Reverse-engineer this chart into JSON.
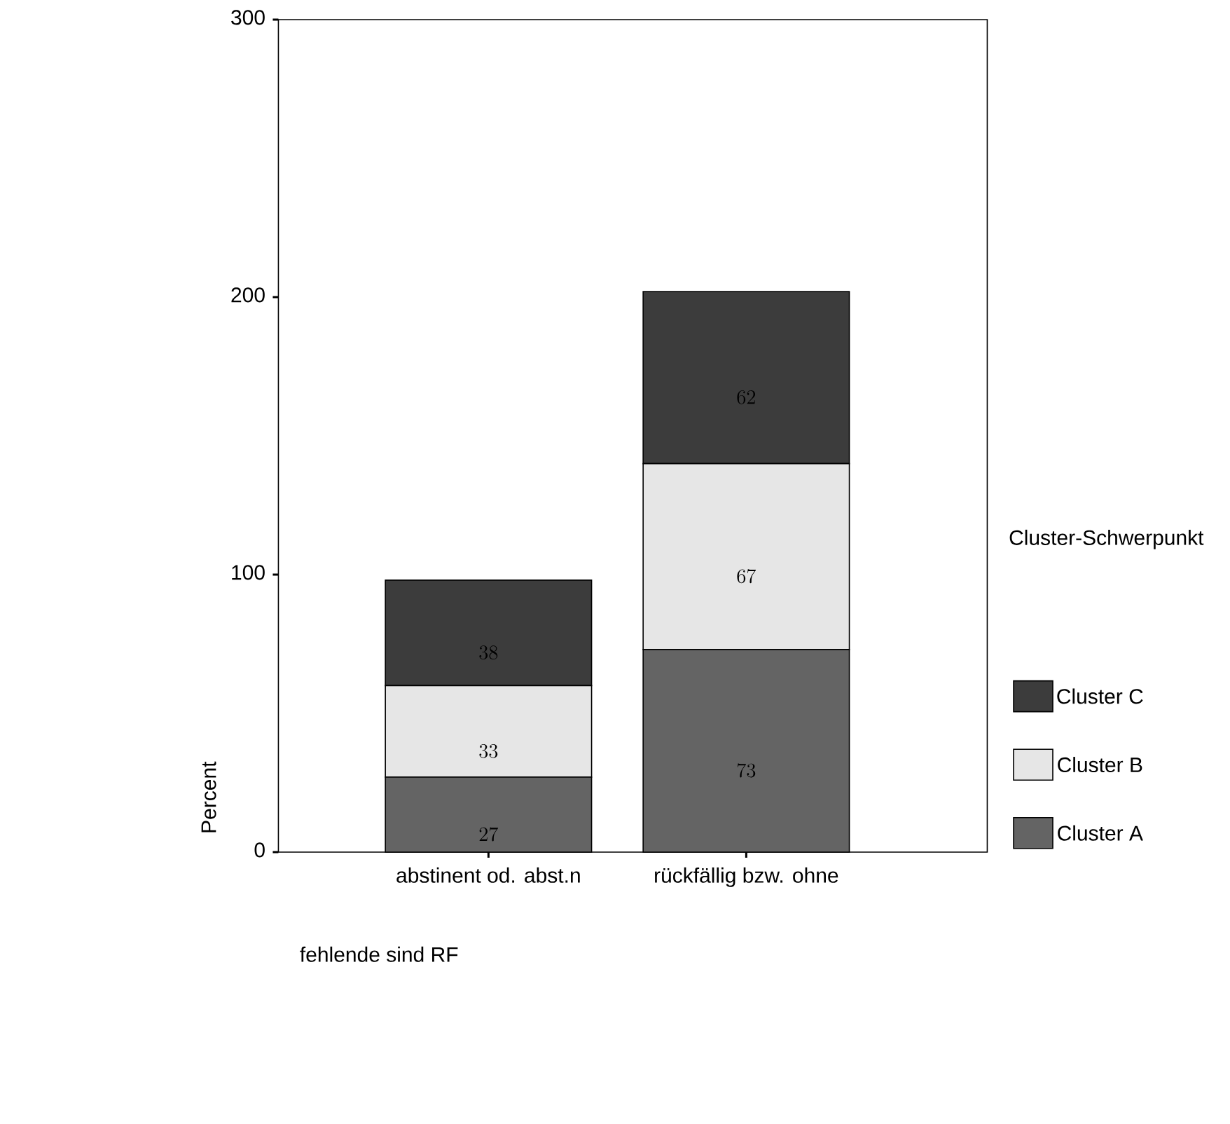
{
  "chart_data": {
    "type": "bar",
    "stacked": true,
    "xlabel": "fehlende sind RF",
    "ylabel": "Percent",
    "legend_title": "Cluster-Schwerpunkt",
    "categories": [
      "abstinent od. abst.n",
      "rückfällig bzw. ohne"
    ],
    "series": [
      {
        "name": "Cluster A",
        "color": "#646464",
        "values": [
          27,
          73
        ]
      },
      {
        "name": "Cluster B",
        "color": "#e6e6e6",
        "values": [
          33,
          67
        ]
      },
      {
        "name": "Cluster C",
        "color": "#3c3c3c",
        "values": [
          38,
          62
        ]
      }
    ],
    "ylim": [
      0,
      300
    ],
    "yticks": [
      0,
      100,
      200,
      300
    ],
    "data_labels": true,
    "legend": "right",
    "grid": false
  }
}
